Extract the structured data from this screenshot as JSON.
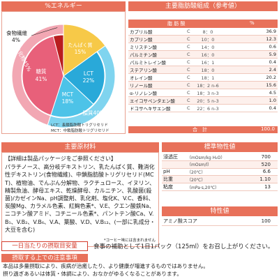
{
  "energy": {
    "header": "%エネルギー",
    "labels": {
      "fiber_name": "食物繊維",
      "fiber_pct": "4%",
      "carb": "炭水化物45%",
      "sugar_name": "糖質",
      "sugar_pct": "41%",
      "protein_name": "たんぱく質",
      "protein_pct": "15%",
      "lct_name": "LCT",
      "lct_pct": "22%",
      "mct_name": "MCT",
      "mct_pct": "18%",
      "fat": "脂質40%"
    },
    "legend": [
      "LCT：長鎖脂肪酸トリグリセリド",
      "MCT：中鎖脂肪酸トリグリセリド"
    ],
    "colors": {
      "fiber": "#b91d1f",
      "sugar": "#e8607a",
      "carb_ring": "#f2a7b3",
      "protein": "#f7c948",
      "lct": "#29a9d9",
      "mct": "#4dc3e8",
      "fat_ring": "#7fd4ef"
    }
  },
  "chart_data": {
    "type": "pie",
    "title": "%エネルギー",
    "categories": [
      "食物繊維",
      "糖質",
      "たんぱく質",
      "LCT",
      "MCT"
    ],
    "values": [
      4,
      41,
      15,
      22,
      18
    ],
    "groups": [
      {
        "name": "炭水化物",
        "value": 45,
        "members": [
          "食物繊維",
          "糖質"
        ]
      },
      {
        "name": "脂質",
        "value": 40,
        "members": [
          "LCT",
          "MCT"
        ]
      }
    ]
  },
  "fatty_acids": {
    "header": "主要脂肪酸組成（参考値）",
    "col_name": "脂 肪 酸",
    "col_pct": "%",
    "rows": [
      {
        "name": "カプリル酸",
        "n": "8：0",
        "v": "36.9"
      },
      {
        "name": "カプリン酸",
        "n": "10：0",
        "v": "12.3"
      },
      {
        "name": "ミリスチン酸",
        "n": "14：0",
        "v": "0.6"
      },
      {
        "name": "パルミチン酸",
        "n": "16：0",
        "v": "5.9"
      },
      {
        "name": "パルミトレイン酸",
        "n": "16：1",
        "v": "0.4"
      },
      {
        "name": "ステアリン酸",
        "n": "18：0",
        "v": "2.4"
      },
      {
        "name": "オレイン酸",
        "n": "18：1",
        "v": "20.2"
      },
      {
        "name": "リノール酸",
        "n": "18：2 n-6",
        "v": "15.6"
      },
      {
        "name": "α-リノレン酸",
        "n": "18：3 n-3",
        "v": "4.5"
      },
      {
        "name": "エイコサペンタエン酸",
        "n": "20：5 n-3",
        "v": "1.0"
      },
      {
        "name": "ドコサヘキサエン酸",
        "n": "22：6 n-3",
        "v": "0.4"
      }
    ],
    "c_label": "C",
    "total_label": "合　計",
    "total_value": "100.0"
  },
  "ingredients": {
    "header": "主要原材料",
    "sub": "【詳細は製品パッケージをご参照ください】",
    "text": "パラチノース、高分岐デキストリン、乳たんぱく質、難消化性デキストリン(食物繊維)、中鎖脂肪酸トリグリセリド(MCT)、植物油、でんぷん分解物、ラクチュロース、イヌリン、精製魚油、酵母エキス、乾燥酵母、カルニチン、乳酸菌(殺菌)/カゼインNa、pH調整剤、乳化剤、塩化K、V.C、香料、炭酸Mg、カラメル色素、紅麹色素*、V.E、クエン酸鉄Na、ニコチン酸アミド、コチニール色素*、パントテン酸Ca、V.B₁、V.B₂、V.B₆、V.A、葉酸、V.D、V.B₁₂、(一部に乳成分・大豆を含む)",
    "note": "*コーヒー味には含まれません"
  },
  "standard": {
    "header": "標準物性値",
    "rows": [
      {
        "label": "浸透圧",
        "unit": "（mOsm/kg H₂O）",
        "value": "700"
      },
      {
        "label": "",
        "unit": "（mOsm/l）",
        "value": "520"
      },
      {
        "label": "pH",
        "unit": "（20℃）",
        "value": "6.6"
      },
      {
        "label": "比重",
        "unit": "（20℃）",
        "value": "1.10"
      },
      {
        "label": "粘度",
        "unit": "（mPa·s,20℃）",
        "value": "13"
      }
    ]
  },
  "properties": {
    "header": "特性値",
    "rows": [
      {
        "label": "アミノ酸スコア",
        "value": "100"
      }
    ]
  },
  "intake": {
    "label": "一日当たりの摂取目安量",
    "text": "食事の補助として1日1パック（125ml）をお召し上がりください。"
  },
  "caution": {
    "label": "摂取する上での注意事項",
    "lines": [
      "本品は多量摂取により、疾病が治癒したり、より健康が増進するものではありません。",
      "摂り過ぎあるいは体質・体調により、おなかがゆるくなることがあります。"
    ]
  }
}
